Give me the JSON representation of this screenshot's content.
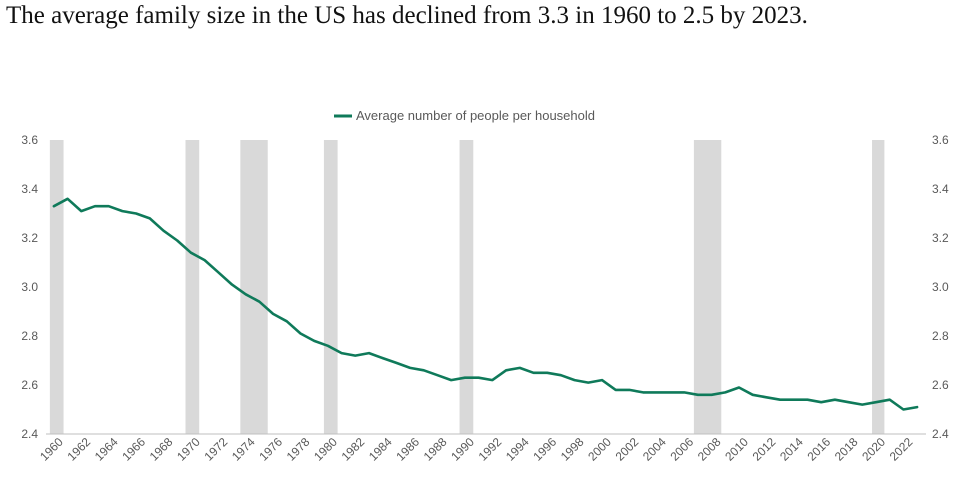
{
  "headline": "The average family size in the US has declined from 3.3 in 1960 to 2.5 by 2023.",
  "chart_data": {
    "type": "line",
    "x": [
      1960,
      1961,
      1962,
      1963,
      1964,
      1965,
      1966,
      1967,
      1968,
      1969,
      1970,
      1971,
      1972,
      1973,
      1974,
      1975,
      1976,
      1977,
      1978,
      1979,
      1980,
      1981,
      1982,
      1983,
      1984,
      1985,
      1986,
      1987,
      1988,
      1989,
      1990,
      1991,
      1992,
      1993,
      1994,
      1995,
      1996,
      1997,
      1998,
      1999,
      2000,
      2001,
      2002,
      2003,
      2004,
      2005,
      2006,
      2007,
      2008,
      2009,
      2010,
      2011,
      2012,
      2013,
      2014,
      2015,
      2016,
      2017,
      2018,
      2019,
      2020,
      2021,
      2022,
      2023
    ],
    "series": [
      {
        "name": "Average number of people per household",
        "color": "#0f7a5a",
        "values": [
          3.33,
          3.36,
          3.31,
          3.33,
          3.33,
          3.31,
          3.3,
          3.28,
          3.23,
          3.19,
          3.14,
          3.11,
          3.06,
          3.01,
          2.97,
          2.94,
          2.89,
          2.86,
          2.81,
          2.78,
          2.76,
          2.73,
          2.72,
          2.73,
          2.71,
          2.69,
          2.67,
          2.66,
          2.64,
          2.62,
          2.63,
          2.63,
          2.62,
          2.66,
          2.67,
          2.65,
          2.65,
          2.64,
          2.62,
          2.61,
          2.62,
          2.58,
          2.58,
          2.57,
          2.57,
          2.57,
          2.57,
          2.56,
          2.56,
          2.57,
          2.59,
          2.56,
          2.55,
          2.54,
          2.54,
          2.54,
          2.53,
          2.54,
          2.53,
          2.52,
          2.53,
          2.54,
          2.5,
          2.51
        ]
      }
    ],
    "recession_bands": [
      [
        1960.0,
        1961.0
      ],
      [
        1969.9,
        1970.9
      ],
      [
        1973.9,
        1975.9
      ],
      [
        1980.0,
        1981.0
      ],
      [
        1989.9,
        1990.9
      ],
      [
        2007.0,
        2009.0
      ],
      [
        2020.0,
        2020.9
      ]
    ],
    "recession_color": "#d9d9d9",
    "ylim": [
      2.4,
      3.6
    ],
    "yticks": [
      "2.4",
      "2.6",
      "2.8",
      "3.0",
      "3.2",
      "3.4",
      "3.6"
    ],
    "xticks": [
      1960,
      1962,
      1964,
      1966,
      1968,
      1970,
      1972,
      1974,
      1976,
      1978,
      1980,
      1982,
      1984,
      1986,
      1988,
      1990,
      1992,
      1994,
      1996,
      1998,
      2000,
      2002,
      2004,
      2006,
      2008,
      2010,
      2012,
      2014,
      2016,
      2018,
      2020,
      2022
    ],
    "legend_position": "top-center",
    "grid": false
  }
}
